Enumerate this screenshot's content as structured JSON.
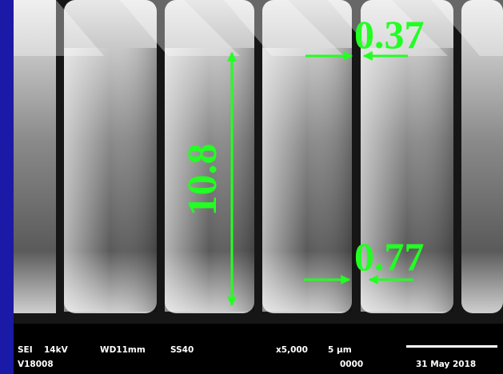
{
  "annotations": {
    "top_gap": "0.37",
    "height": "10.8",
    "bottom_gap": "0.77"
  },
  "info_bar": {
    "row1": [
      "SEI",
      "14kV",
      "WD11mm",
      "SS40",
      "x5,000",
      "5 μm"
    ],
    "row2": [
      "V18008",
      "0000",
      "31 May 2018"
    ]
  }
}
